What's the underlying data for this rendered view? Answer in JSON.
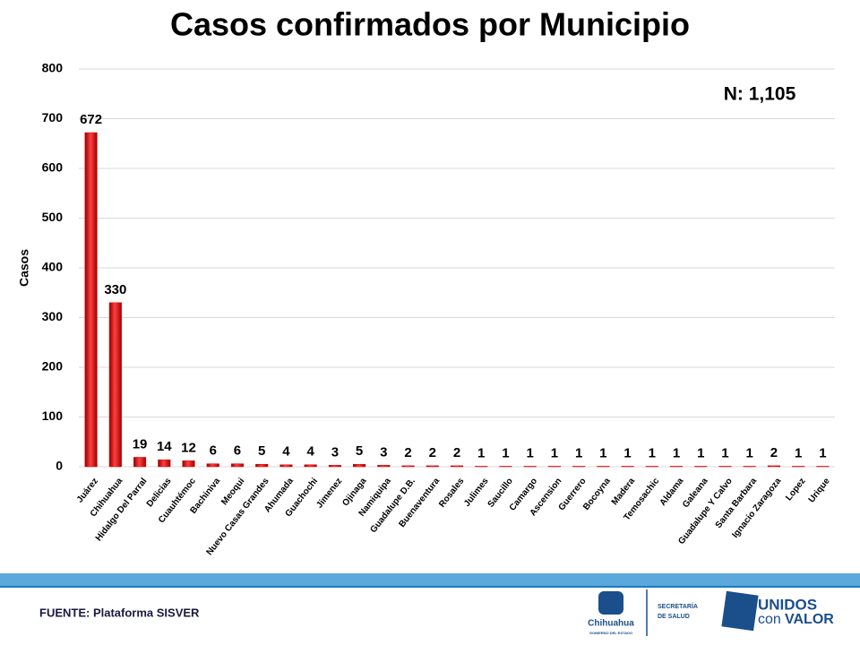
{
  "chart_data": {
    "type": "bar",
    "title": "Casos confirmados por Municipio",
    "ylabel": "Casos",
    "annotation": "N: 1,105",
    "categories": [
      "Juárez",
      "Chihuahua",
      "Hidalgo Del Parral",
      "Delicias",
      "Cuauhtémoc",
      "Bachiniva",
      "Meoqui",
      "Nuevo Casas Grandes",
      "Ahumada",
      "Guachochi",
      "Jimenez",
      "Ojinaga",
      "Namiquipa",
      "Guadalupe D.B.",
      "Buenaventura",
      "Rosales",
      "Julimes",
      "Saucillo",
      "Camargo",
      "Ascension",
      "Guerrero",
      "Bocoyna",
      "Madera",
      "Temosachic",
      "Aldama",
      "Galeana",
      "Guadalupe Y Calvo",
      "Santa Barbara",
      "Ignacio Zaragoza",
      "Lopez",
      "Urique"
    ],
    "values": [
      672,
      330,
      19,
      14,
      12,
      6,
      6,
      5,
      4,
      4,
      3,
      5,
      3,
      2,
      2,
      2,
      1,
      1,
      1,
      1,
      1,
      1,
      1,
      1,
      1,
      1,
      1,
      1,
      2,
      1,
      1
    ],
    "color": "#e00000",
    "ylim": [
      0,
      800
    ],
    "yticks": [
      0,
      100,
      200,
      300,
      400,
      500,
      600,
      700,
      800
    ],
    "grid": true
  },
  "footer": {
    "source": "FUENTE: Plataforma SISVER",
    "logo1": {
      "name": "Chihuahua",
      "sub": "GOBIERNO DEL ESTADO"
    },
    "logo2": [
      "SECRETARÍA",
      "DE SALUD"
    ],
    "logo3": {
      "top": "UNIDOS",
      "con": "con",
      "valor": "VALOR"
    }
  }
}
